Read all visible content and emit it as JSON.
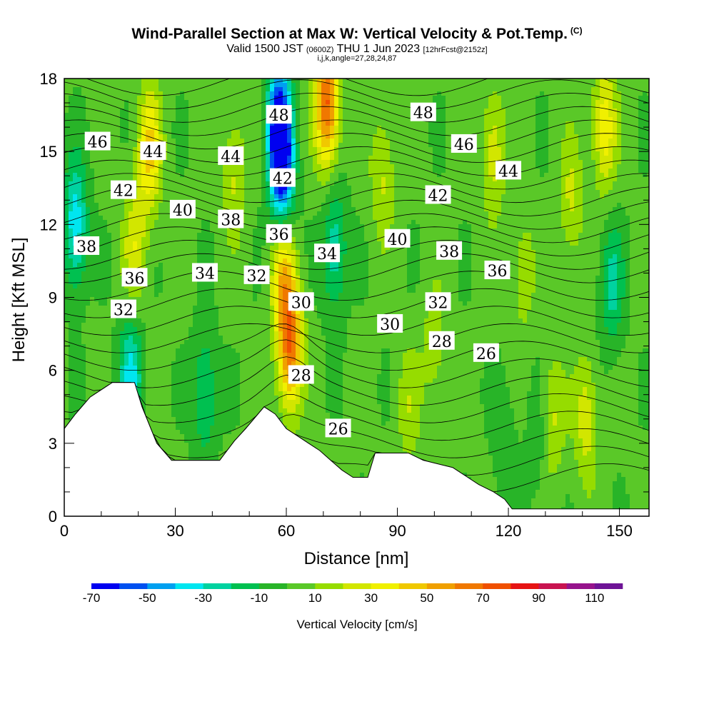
{
  "header": {
    "title": "Wind-Parallel Section at Max W: Vertical Velocity & Pot.Temp.",
    "copyright": "(C)",
    "valid_prefix": "Valid 1500 JST",
    "valid_utc": "(0600Z)",
    "valid_day": "THU 1 Jun 2023",
    "forecast": "[12hrFcst@2152z]",
    "indices": "i,j,k,angle=27,28,24,87"
  },
  "chart_data": {
    "type": "heatmap",
    "xlabel": "Distance [nm]",
    "ylabel": "Height [Kft MSL]",
    "xlim": [
      0,
      158
    ],
    "ylim": [
      0,
      18
    ],
    "xticks": [
      0,
      30,
      60,
      90,
      120,
      150
    ],
    "yticks": [
      0,
      3,
      6,
      9,
      12,
      15,
      18
    ],
    "colorbar": {
      "label": "Vertical Velocity [cm/s]",
      "tick_labels": [
        -70,
        -50,
        -30,
        -10,
        10,
        30,
        50,
        70,
        90,
        110
      ],
      "levels": [
        -70,
        -60,
        -50,
        -40,
        -30,
        -20,
        -10,
        0,
        10,
        20,
        30,
        40,
        50,
        60,
        70,
        80,
        90,
        100,
        110
      ],
      "colors": [
        "#0000f0",
        "#0050f0",
        "#00a0f0",
        "#00e6f0",
        "#00d2a0",
        "#00c050",
        "#28b428",
        "#5ac828",
        "#96dc00",
        "#d2e600",
        "#f0f000",
        "#f0c800",
        "#f0a000",
        "#f07800",
        "#f05000",
        "#e61414",
        "#c81450",
        "#96148c",
        "#6e1496"
      ]
    },
    "terrain_profile": [
      [
        0,
        3.6
      ],
      [
        3,
        4.2
      ],
      [
        7,
        4.9
      ],
      [
        10,
        5.2
      ],
      [
        13,
        5.5
      ],
      [
        19,
        5.5
      ],
      [
        21,
        4.5
      ],
      [
        25,
        3.0
      ],
      [
        29,
        2.3
      ],
      [
        42,
        2.3
      ],
      [
        46,
        3.1
      ],
      [
        49,
        3.6
      ],
      [
        54,
        4.5
      ],
      [
        57,
        4.2
      ],
      [
        60,
        3.6
      ],
      [
        63,
        3.3
      ],
      [
        66,
        3.0
      ],
      [
        69,
        2.7
      ],
      [
        72,
        2.3
      ],
      [
        75,
        1.9
      ],
      [
        78,
        1.6
      ],
      [
        82,
        1.6
      ],
      [
        84,
        2.6
      ],
      [
        93,
        2.6
      ],
      [
        97,
        2.3
      ],
      [
        105,
        2.0
      ],
      [
        109,
        1.6
      ],
      [
        112,
        1.3
      ],
      [
        116,
        1.0
      ],
      [
        119,
        0.7
      ],
      [
        121,
        0.3
      ],
      [
        126,
        0.3
      ],
      [
        158,
        0.3
      ]
    ],
    "vertical_velocity_features": [
      {
        "x": 3,
        "z": 12,
        "w": -40
      },
      {
        "x": 23,
        "z": 15,
        "w": 40
      },
      {
        "x": 19,
        "z": 11,
        "w": 25
      },
      {
        "x": 18,
        "z": 5.8,
        "w": -35
      },
      {
        "x": 38,
        "z": 5,
        "w": -25
      },
      {
        "x": 46,
        "z": 14,
        "w": 20
      },
      {
        "x": 58,
        "z": 16,
        "w": -70
      },
      {
        "x": 59,
        "z": 14,
        "w": -50
      },
      {
        "x": 61,
        "z": 7,
        "w": 65
      },
      {
        "x": 59,
        "z": 10,
        "w": 40
      },
      {
        "x": 71,
        "z": 17,
        "w": 70
      },
      {
        "x": 73,
        "z": 11,
        "w": -30
      },
      {
        "x": 86,
        "z": 14,
        "w": 20
      },
      {
        "x": 93,
        "z": 4.5,
        "w": 15
      },
      {
        "x": 100,
        "z": 7,
        "w": 15
      },
      {
        "x": 116,
        "z": 15,
        "w": 25
      },
      {
        "x": 124,
        "z": 10,
        "w": 15
      },
      {
        "x": 132,
        "z": 4,
        "w": 20
      },
      {
        "x": 137,
        "z": 13,
        "w": 20
      },
      {
        "x": 141,
        "z": 4,
        "w": 25
      },
      {
        "x": 146,
        "z": 16,
        "w": 35
      },
      {
        "x": 148,
        "z": 9.5,
        "w": -25
      },
      {
        "x": 119,
        "z": 3,
        "w": -10
      },
      {
        "x": 128,
        "z": 3,
        "w": -10
      }
    ],
    "isentrope_labels": [
      {
        "text": "46",
        "x": 9,
        "z": 15.4
      },
      {
        "text": "44",
        "x": 24,
        "z": 15.0
      },
      {
        "text": "44",
        "x": 45,
        "z": 14.8
      },
      {
        "text": "48",
        "x": 58,
        "z": 16.5
      },
      {
        "text": "48",
        "x": 97,
        "z": 16.6
      },
      {
        "text": "46",
        "x": 108,
        "z": 15.3
      },
      {
        "text": "44",
        "x": 120,
        "z": 14.2
      },
      {
        "text": "42",
        "x": 16,
        "z": 13.4
      },
      {
        "text": "42",
        "x": 59,
        "z": 13.9
      },
      {
        "text": "42",
        "x": 101,
        "z": 13.2
      },
      {
        "text": "40",
        "x": 32,
        "z": 12.6
      },
      {
        "text": "38",
        "x": 45,
        "z": 12.2
      },
      {
        "text": "38",
        "x": 6,
        "z": 11.1
      },
      {
        "text": "36",
        "x": 58,
        "z": 11.6
      },
      {
        "text": "40",
        "x": 90,
        "z": 11.4
      },
      {
        "text": "38",
        "x": 104,
        "z": 10.9
      },
      {
        "text": "34",
        "x": 71,
        "z": 10.8
      },
      {
        "text": "36",
        "x": 19,
        "z": 9.8
      },
      {
        "text": "34",
        "x": 38,
        "z": 10.0
      },
      {
        "text": "32",
        "x": 52,
        "z": 9.9
      },
      {
        "text": "36",
        "x": 117,
        "z": 10.1
      },
      {
        "text": "32",
        "x": 16,
        "z": 8.5
      },
      {
        "text": "30",
        "x": 64,
        "z": 8.8
      },
      {
        "text": "32",
        "x": 101,
        "z": 8.8
      },
      {
        "text": "30",
        "x": 88,
        "z": 7.9
      },
      {
        "text": "28",
        "x": 102,
        "z": 7.2
      },
      {
        "text": "26",
        "x": 114,
        "z": 6.7
      },
      {
        "text": "28",
        "x": 64,
        "z": 5.8
      },
      {
        "text": "26",
        "x": 74,
        "z": 3.6
      }
    ]
  }
}
